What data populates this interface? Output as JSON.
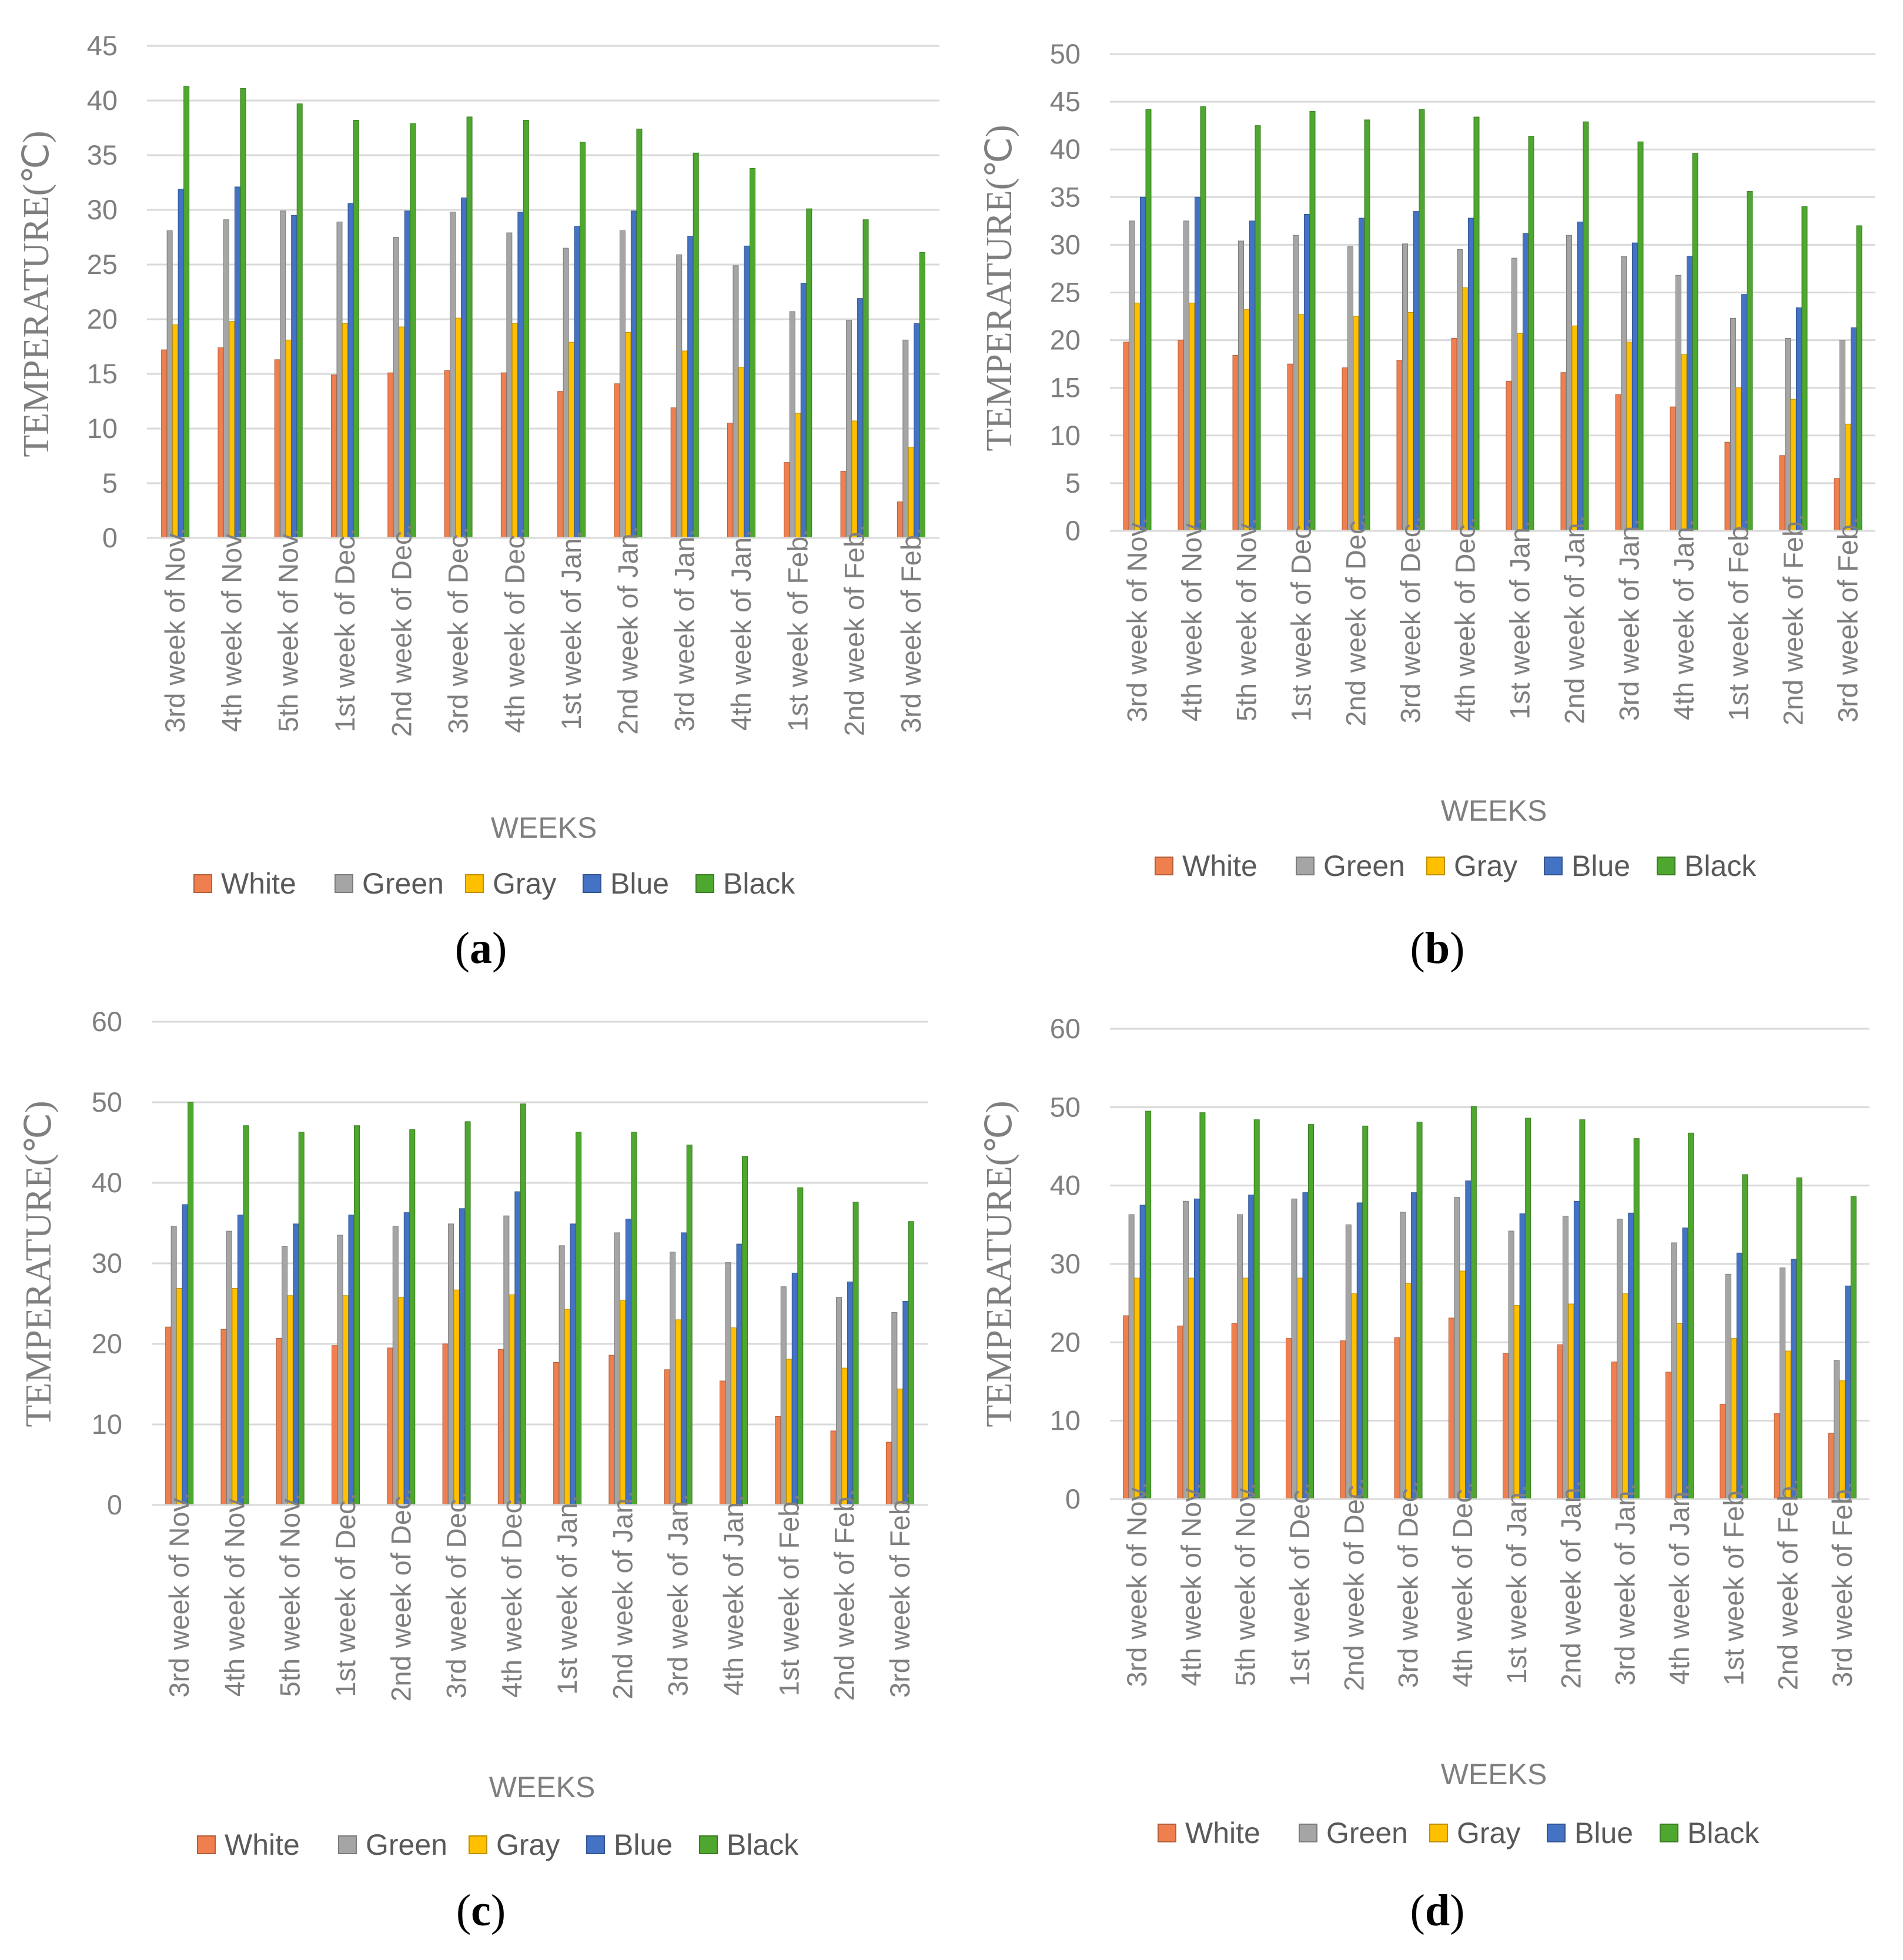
{
  "series_colors": {
    "White": "#f07f4f",
    "Green": "#a5a5a5",
    "Gray": "#ffc000",
    "Blue": "#4472c4",
    "Black": "#4ea72e"
  },
  "chart_data": [
    {
      "id": "a",
      "type": "bar",
      "panel_label": "a",
      "ylabel": "TEMPERATURE(℃)",
      "xlabel": "WEEKS",
      "ylim": [
        0,
        45
      ],
      "yticks": [
        0,
        5,
        10,
        15,
        20,
        25,
        30,
        35,
        40,
        45
      ],
      "legend_position": "bottom",
      "categories": [
        "3rd week of Nov.",
        "4th week of Nov.",
        "5th week of Nov.",
        "1st week of Dec.",
        "2nd week of Dec.",
        "3rd week of Dec.",
        "4th week of Dec.",
        "1st week of Jan.",
        "2nd week of Jan.",
        "3rd week of Jan.",
        "4th week of Jan.",
        "1st week of Feb.",
        "2nd week of Feb.",
        "3rd week of Feb."
      ],
      "series": [
        {
          "name": "White",
          "values": [
            17.2,
            17.4,
            16.3,
            14.9,
            15.1,
            15.3,
            15.1,
            13.4,
            14.1,
            11.9,
            10.5,
            6.9,
            6.1,
            3.3
          ]
        },
        {
          "name": "Green",
          "values": [
            28.1,
            29.1,
            29.9,
            28.9,
            27.5,
            29.8,
            27.9,
            26.5,
            28.1,
            25.9,
            24.9,
            20.7,
            19.9,
            18.1
          ]
        },
        {
          "name": "Gray",
          "values": [
            19.5,
            19.8,
            18.1,
            19.6,
            19.3,
            20.1,
            19.6,
            17.9,
            18.8,
            17.1,
            15.6,
            11.4,
            10.7,
            8.3
          ]
        },
        {
          "name": "Blue",
          "values": [
            31.9,
            32.1,
            29.5,
            30.6,
            29.9,
            31.1,
            29.8,
            28.5,
            29.9,
            27.6,
            26.7,
            23.3,
            21.9,
            19.6
          ]
        },
        {
          "name": "Black",
          "values": [
            41.3,
            41.1,
            39.7,
            38.2,
            37.9,
            38.5,
            38.2,
            36.2,
            37.4,
            35.2,
            33.8,
            30.1,
            29.1,
            26.1
          ]
        }
      ]
    },
    {
      "id": "b",
      "type": "bar",
      "panel_label": "b",
      "ylabel": "TEMPERATURE(℃)",
      "xlabel": "WEEKS",
      "ylim": [
        0,
        50
      ],
      "yticks": [
        0,
        5,
        10,
        15,
        20,
        25,
        30,
        35,
        40,
        45,
        50
      ],
      "legend_position": "bottom",
      "categories": [
        "3rd week of Nov.",
        "4th week of Nov.",
        "5th week of Nov.",
        "1st week of Dec.",
        "2nd week of Dec.",
        "3rd week of Dec.",
        "4th week of Dec.",
        "1st week of Jan.",
        "2nd week of Jan.",
        "3rd week of Jan.",
        "4th week of Jan.",
        "1st week of Feb.",
        "2nd week of Feb.",
        "3rd week of Feb."
      ],
      "series": [
        {
          "name": "White",
          "values": [
            19.8,
            20.0,
            18.4,
            17.5,
            17.1,
            17.9,
            20.2,
            15.7,
            16.6,
            14.3,
            13.0,
            9.3,
            7.9,
            5.5
          ]
        },
        {
          "name": "Green",
          "values": [
            32.5,
            32.5,
            30.4,
            31.0,
            29.8,
            30.1,
            29.5,
            28.6,
            31.0,
            28.8,
            26.8,
            22.3,
            20.2,
            20.0
          ]
        },
        {
          "name": "Gray",
          "values": [
            23.9,
            23.9,
            23.2,
            22.7,
            22.5,
            22.9,
            25.5,
            20.7,
            21.5,
            19.8,
            18.5,
            15.0,
            13.8,
            11.2
          ]
        },
        {
          "name": "Blue",
          "values": [
            35.0,
            35.0,
            32.5,
            33.2,
            32.8,
            33.5,
            32.8,
            31.2,
            32.4,
            30.2,
            28.8,
            24.8,
            23.4,
            21.3
          ]
        },
        {
          "name": "Black",
          "values": [
            44.2,
            44.5,
            42.5,
            44.0,
            43.1,
            44.2,
            43.4,
            41.4,
            42.9,
            40.8,
            39.6,
            35.6,
            34.0,
            32.0
          ]
        }
      ]
    },
    {
      "id": "c",
      "type": "bar",
      "panel_label": "c",
      "ylabel": "TEMPERATURE(℃)",
      "xlabel": "WEEKS",
      "ylim": [
        0,
        60
      ],
      "yticks": [
        0,
        10,
        20,
        30,
        40,
        50,
        60
      ],
      "legend_position": "bottom",
      "categories": [
        "3rd week of Nov.",
        "4th week of Nov.",
        "5th week of Nov.",
        "1st week of Dec.",
        "2nd week of Dec.",
        "3rd week of Dec.",
        "4th week of Dec.",
        "1st week of Jan.",
        "2nd week of Jan.",
        "3rd week of Jan.",
        "4th week of Jan.",
        "1st week of Feb.",
        "2nd week of Feb.",
        "3rd week of Feb."
      ],
      "series": [
        {
          "name": "White",
          "values": [
            22.1,
            21.8,
            20.7,
            19.8,
            19.5,
            20.0,
            19.3,
            17.7,
            18.6,
            16.8,
            15.4,
            11.0,
            9.2,
            7.8
          ]
        },
        {
          "name": "Green",
          "values": [
            34.6,
            34.0,
            32.1,
            33.5,
            34.6,
            34.9,
            35.9,
            32.2,
            33.8,
            31.4,
            30.1,
            27.1,
            25.8,
            23.9
          ]
        },
        {
          "name": "Gray",
          "values": [
            26.9,
            26.9,
            26.0,
            26.0,
            25.8,
            26.7,
            26.1,
            24.3,
            25.4,
            23.0,
            22.0,
            18.1,
            17.0,
            14.4
          ]
        },
        {
          "name": "Blue",
          "values": [
            37.3,
            36.0,
            34.9,
            36.0,
            36.3,
            36.8,
            38.9,
            34.9,
            35.5,
            33.8,
            32.4,
            28.8,
            27.7,
            25.3
          ]
        },
        {
          "name": "Black",
          "values": [
            50.0,
            47.1,
            46.3,
            47.1,
            46.6,
            47.6,
            49.8,
            46.3,
            46.3,
            44.7,
            43.3,
            39.4,
            37.6,
            35.2
          ]
        }
      ]
    },
    {
      "id": "d",
      "type": "bar",
      "panel_label": "d",
      "ylabel": "TEMPERATURE(℃)",
      "xlabel": "WEEKS",
      "ylim": [
        0,
        60
      ],
      "yticks": [
        0,
        10,
        20,
        30,
        40,
        50,
        60
      ],
      "legend_position": "bottom",
      "categories": [
        "3rd week of Nov.",
        "4th week of Nov.",
        "5th week of Nov.",
        "1st week of Dec.",
        "2nd week of Dec.",
        "3rd week of Dec.",
        "4th week of Dec.",
        "1st week of Jan.",
        "2nd week of Jan.",
        "3rd week of Jan.",
        "4th week of Jan.",
        "1st week of Feb.",
        "2nd week of Feb.",
        "3rd week of Feb."
      ],
      "series": [
        {
          "name": "White",
          "values": [
            23.4,
            22.1,
            22.4,
            20.5,
            20.2,
            20.6,
            23.1,
            18.6,
            19.7,
            17.5,
            16.2,
            12.1,
            10.9,
            8.4
          ]
        },
        {
          "name": "Green",
          "values": [
            36.3,
            38.0,
            36.3,
            38.3,
            35.0,
            36.6,
            38.5,
            34.2,
            36.1,
            35.7,
            32.7,
            28.7,
            29.5,
            17.7
          ]
        },
        {
          "name": "Gray",
          "values": [
            28.2,
            28.2,
            28.2,
            28.2,
            26.2,
            27.5,
            29.1,
            24.7,
            24.9,
            26.2,
            22.4,
            20.5,
            18.9,
            15.1
          ]
        },
        {
          "name": "Blue",
          "values": [
            37.5,
            38.3,
            38.8,
            39.1,
            37.8,
            39.1,
            40.6,
            36.4,
            38.0,
            36.5,
            34.6,
            31.4,
            30.6,
            27.2
          ]
        },
        {
          "name": "Black",
          "values": [
            49.5,
            49.3,
            48.4,
            47.8,
            47.6,
            48.1,
            50.1,
            48.6,
            48.4,
            46.0,
            46.7,
            41.4,
            41.0,
            38.6
          ]
        }
      ]
    }
  ]
}
